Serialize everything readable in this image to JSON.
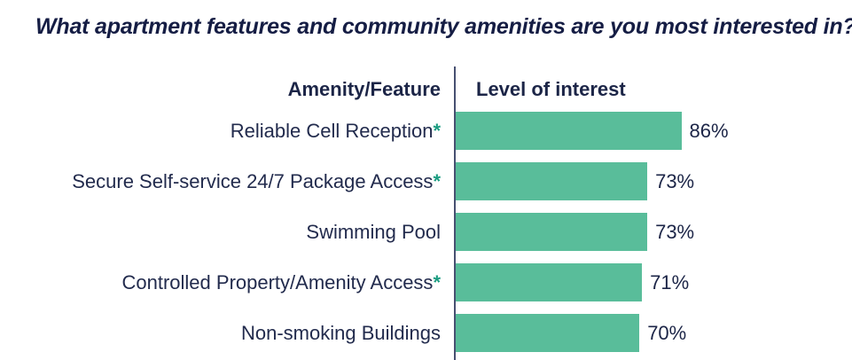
{
  "title": "What apartment features and community amenities are you most interested in?",
  "chart_data": {
    "type": "bar",
    "orientation": "horizontal",
    "title": "What apartment features and community amenities are you most interested in?",
    "column_headers": {
      "amenity": "Amenity/Feature",
      "interest": "Level of interest"
    },
    "categories": [
      "Reliable Cell Reception*",
      "Secure Self-service 24/7 Package Access*",
      "Swimming Pool",
      "Controlled Property/Amenity Access*",
      "Non-smoking Buildings"
    ],
    "values": [
      86,
      73,
      73,
      71,
      70
    ],
    "xlim": [
      0,
      100
    ],
    "grid": false,
    "legend": "none",
    "rows": [
      {
        "label": "Reliable Cell Reception",
        "suffix": "*",
        "value": 86,
        "value_label": "86%"
      },
      {
        "label": "Secure Self-service 24/7 Package Access",
        "suffix": "*",
        "value": 73,
        "value_label": "73%"
      },
      {
        "label": "Swimming Pool",
        "suffix": "",
        "value": 73,
        "value_label": "73%"
      },
      {
        "label": "Controlled Property/Amenity Access",
        "suffix": "*",
        "value": 71,
        "value_label": "71%"
      },
      {
        "label": "Non-smoking Buildings",
        "suffix": "",
        "value": 70,
        "value_label": "70%"
      }
    ],
    "colors": {
      "bar": "#59bd9a",
      "asterisk": "#1a9c80",
      "text": "#1c2547",
      "title_text": "#151d44",
      "axis_line": "#475071",
      "background": "#ffffff"
    }
  }
}
